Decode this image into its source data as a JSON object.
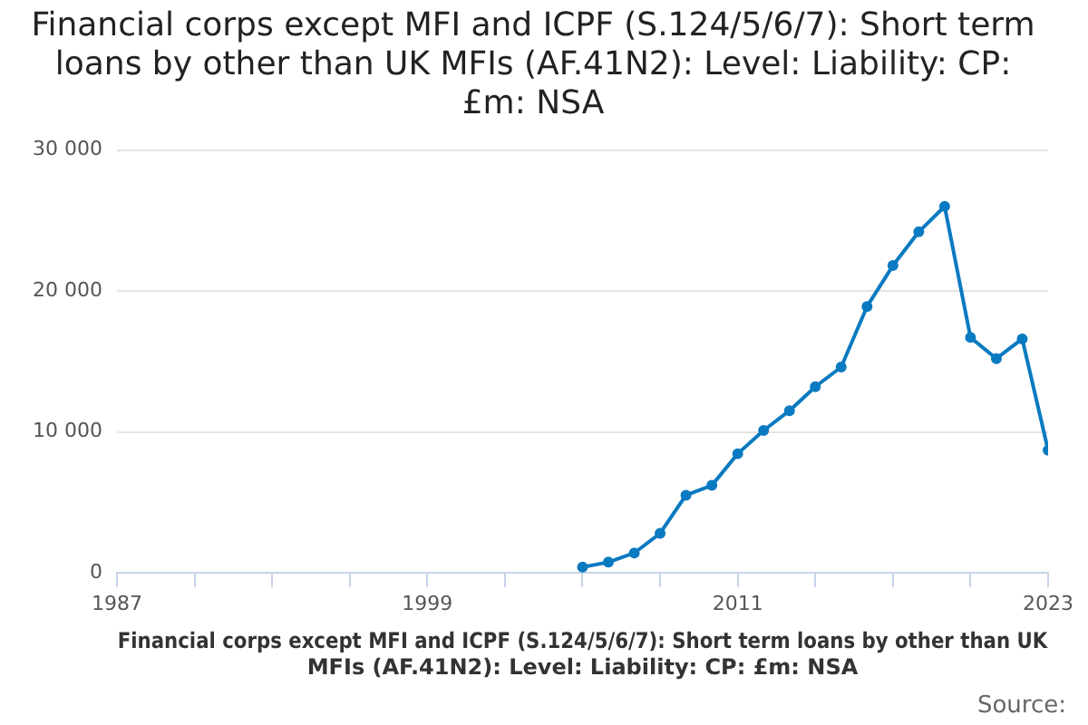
{
  "chart_data": {
    "type": "line",
    "title": "Financial corps except MFI and ICPF (S.124/5/6/7): Short term loans by other than UK MFIs (AF.41N2): Level: Liability: CP: £m: NSA",
    "xlabel": "Financial corps except MFI and ICPF (S.124/5/6/7): Short term loans by other than UK MFIs (AF.41N2): Level: Liability: CP: £m: NSA",
    "annotations": [
      "Source:"
    ],
    "x": [
      2005,
      2006,
      2007,
      2008,
      2009,
      2010,
      2011,
      2012,
      2013,
      2014,
      2015,
      2016,
      2017,
      2018,
      2019,
      2020,
      2021,
      2022,
      2023
    ],
    "series": [
      {
        "color": "#0a7ac1",
        "values": [
          400,
          750,
          1400,
          2800,
          5500,
          6200,
          8450,
          10100,
          11500,
          13200,
          14600,
          18900,
          21800,
          24200,
          26000,
          16700,
          15200,
          16600,
          8700
        ]
      }
    ],
    "xlim": [
      1987,
      2023
    ],
    "xticks": [
      1987,
      {
        "value": 1990,
        "label": null
      },
      {
        "value": 1993,
        "label": null
      },
      {
        "value": 1996,
        "label": null
      },
      1999,
      {
        "value": 2002,
        "label": null
      },
      {
        "value": 2005,
        "label": null
      },
      {
        "value": 2008,
        "label": null
      },
      2011,
      {
        "value": 2014,
        "label": null
      },
      {
        "value": 2017,
        "label": null
      },
      {
        "value": 2020,
        "label": null
      },
      2023
    ],
    "ylim": [
      0,
      30000
    ],
    "yticks": [
      0,
      {
        "value": 10000,
        "label": "10 000"
      },
      {
        "value": 20000,
        "label": "20 000"
      },
      {
        "value": 30000,
        "label": "30 000"
      }
    ],
    "grid": "y",
    "legend": false,
    "marker": "circle",
    "line_style": "solid"
  }
}
